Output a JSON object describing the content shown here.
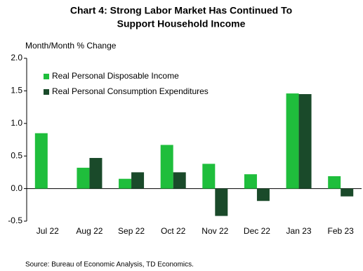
{
  "chart_data": {
    "type": "bar",
    "title": [
      "Chart 4: Strong Labor Market Has Continued To",
      "Support Household Income"
    ],
    "y_label": "Month/Month  % Change",
    "source": "Source:  Bureau of Economic  Analysis, TD Economics.",
    "categories": [
      "Jul 22",
      "Aug 22",
      "Sep 22",
      "Oct 22",
      "Nov 22",
      "Dec 22",
      "Jan 23",
      "Feb 23"
    ],
    "series": [
      {
        "name": "Real Personal Disposable Income",
        "color": "#1fbe3c",
        "values": [
          0.85,
          0.32,
          0.15,
          0.67,
          0.38,
          0.22,
          1.46,
          0.19
        ]
      },
      {
        "name": "Real Personal Consumption Expenditures",
        "color": "#1a4a2a",
        "values": [
          0,
          0.47,
          0.25,
          0.25,
          -0.42,
          -0.19,
          1.45,
          -0.12
        ]
      }
    ],
    "ylim": [
      -0.5,
      2.0
    ],
    "yticks": [
      {
        "value": 2.0,
        "label": "2.0"
      },
      1.5,
      {
        "value": 1.0,
        "label": "1.0"
      },
      0.5,
      {
        "value": 0.0,
        "label": "0.0"
      },
      -0.5
    ],
    "legend": "upper-left"
  }
}
